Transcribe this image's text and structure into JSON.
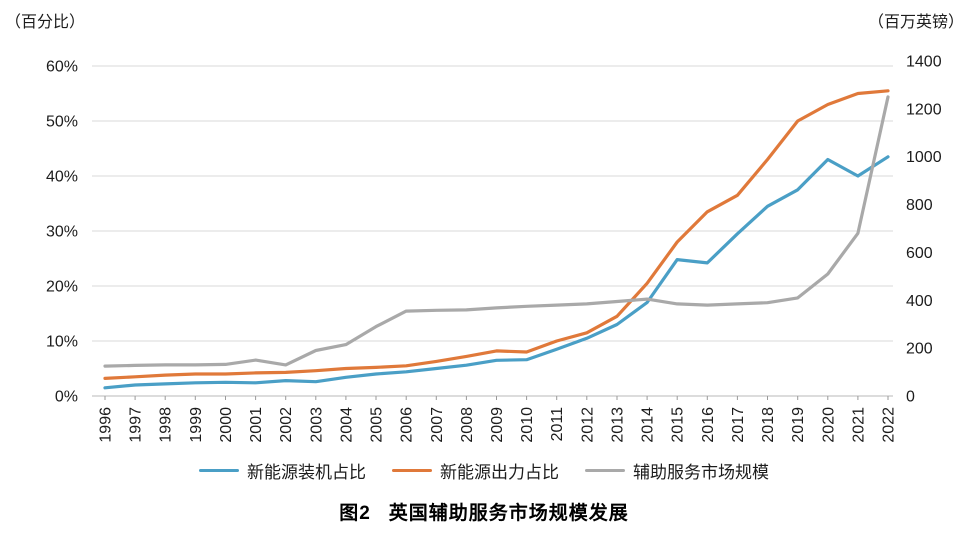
{
  "figure": {
    "caption_prefix": "图2"
  },
  "chart_data": {
    "type": "line",
    "title": "英国辅助服务市场规模发展",
    "left_axis_title": "（百分比）",
    "right_axis_title": "（百万英镑）",
    "grid": true,
    "legend_position": "bottom",
    "x": [
      "1996",
      "1997",
      "1998",
      "1999",
      "2000",
      "2001",
      "2002",
      "2003",
      "2004",
      "2005",
      "2006",
      "2007",
      "2008",
      "2009",
      "2010",
      "2011",
      "2012",
      "2013",
      "2014",
      "2015",
      "2016",
      "2017",
      "2018",
      "2019",
      "2020",
      "2021",
      "2022"
    ],
    "left_axis": {
      "label": "（百分比）",
      "min": 0,
      "max": 60,
      "ticks": [
        0,
        10,
        20,
        30,
        40,
        50,
        60
      ],
      "suffix": "%"
    },
    "right_axis": {
      "label": "（百万英镑）",
      "min": 0,
      "max": 1400,
      "ticks": [
        0,
        200,
        400,
        600,
        800,
        1000,
        1200,
        1400
      ]
    },
    "series": [
      {
        "name": "新能源装机占比",
        "axis": "left",
        "unit": "%",
        "color": "#4A9FC6",
        "values": [
          1.5,
          2.0,
          2.2,
          2.4,
          2.5,
          2.4,
          2.8,
          2.6,
          3.4,
          4.0,
          4.4,
          5.0,
          5.6,
          6.5,
          6.6,
          8.5,
          10.5,
          13.0,
          17.0,
          24.8,
          24.2,
          29.5,
          34.5,
          37.5,
          43.0,
          40.0,
          43.5
        ]
      },
      {
        "name": "新能源出力占比",
        "axis": "left",
        "unit": "%",
        "color": "#E0793A",
        "values": [
          3.2,
          3.5,
          3.8,
          4.0,
          4.0,
          4.2,
          4.3,
          4.6,
          5.0,
          5.2,
          5.5,
          6.3,
          7.2,
          8.2,
          8.0,
          10.0,
          11.5,
          14.5,
          20.5,
          28.0,
          33.5,
          36.5,
          43.0,
          50.0,
          53.0,
          55.0,
          55.5
        ]
      },
      {
        "name": "辅助服务市场规模",
        "axis": "right",
        "unit": "百万英镑",
        "color": "#A9A9A9",
        "values": [
          125,
          128,
          130,
          130,
          132,
          150,
          130,
          190,
          215,
          290,
          355,
          358,
          360,
          368,
          375,
          380,
          385,
          395,
          405,
          385,
          380,
          385,
          390,
          410,
          510,
          680,
          1250
        ]
      }
    ]
  }
}
